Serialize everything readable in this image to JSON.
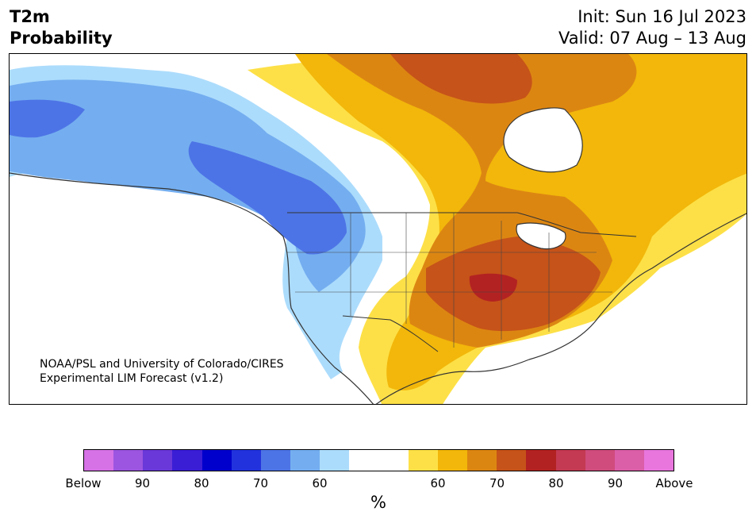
{
  "header": {
    "title_line1": "T2m",
    "title_line2": "Probability",
    "init": "Init: Sun 16 Jul 2023",
    "valid": "Valid: 07 Aug – 13 Aug"
  },
  "credit": {
    "line1": "NOAA/PSL and University of Colorado/CIRES",
    "line2": "Experimental LIM Forecast (v1.2)"
  },
  "colorbar": {
    "colors": [
      "#d672e6",
      "#9c55e0",
      "#6a38d8",
      "#3a1ed6",
      "#0000cc",
      "#2233dd",
      "#4d74e6",
      "#74aef0",
      "#acdcfc",
      "#ffffff",
      "#ffffff",
      "#fde047",
      "#f2b70a",
      "#dc8612",
      "#c65319",
      "#b32222",
      "#c43a52",
      "#cf4c7d",
      "#db5ea8",
      "#e876dd"
    ],
    "tick_labels": [
      "Below",
      "90",
      "80",
      "70",
      "60",
      "60",
      "70",
      "80",
      "90",
      "Above"
    ],
    "unit": "%"
  },
  "map": {
    "region": "North America",
    "legend_colors": {
      "below_60": "#acdcfc",
      "below_70": "#74aef0",
      "below_75": "#4d74e6",
      "above_60": "#fde047",
      "above_65": "#f2b70a",
      "above_70": "#dc8612",
      "above_75": "#c65319",
      "above_80": "#b32222"
    }
  }
}
